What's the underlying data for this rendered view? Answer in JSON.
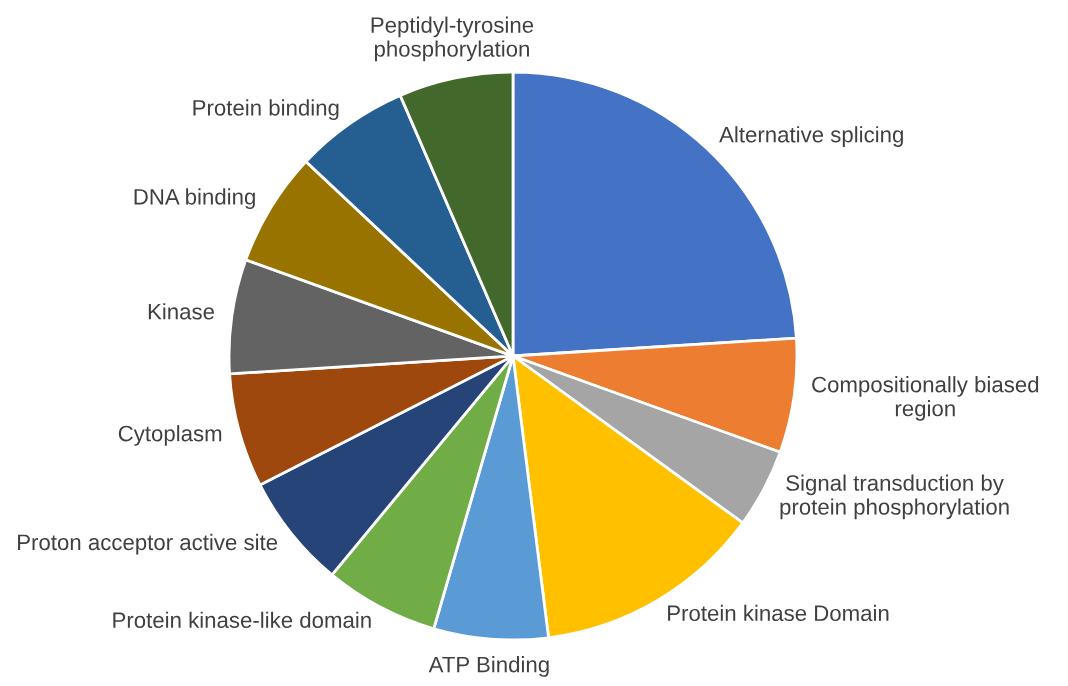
{
  "chart_data": {
    "type": "pie",
    "categories": [
      "Alternative splicing",
      "Compositionally biased\nregion",
      "Signal transduction by\nprotein phosphorylation",
      "Protein kinase Domain",
      "ATP Binding",
      "Protein kinase-like domain",
      "Proton acceptor active site",
      "Cytoplasm",
      "Kinase",
      "DNA binding",
      "Protein binding",
      "Peptidyl-tyrosine\nphosphorylation"
    ],
    "values": [
      24,
      6.5,
      4.5,
      13,
      6.5,
      6.5,
      6.5,
      6.5,
      6.5,
      6.5,
      6.5,
      6.5
    ],
    "colors": [
      "#4472c4",
      "#ed7d31",
      "#a5a5a5",
      "#ffc000",
      "#5b9bd5",
      "#70ad47",
      "#264478",
      "#9e480e",
      "#636363",
      "#997300",
      "#255e91",
      "#43682b"
    ]
  }
}
